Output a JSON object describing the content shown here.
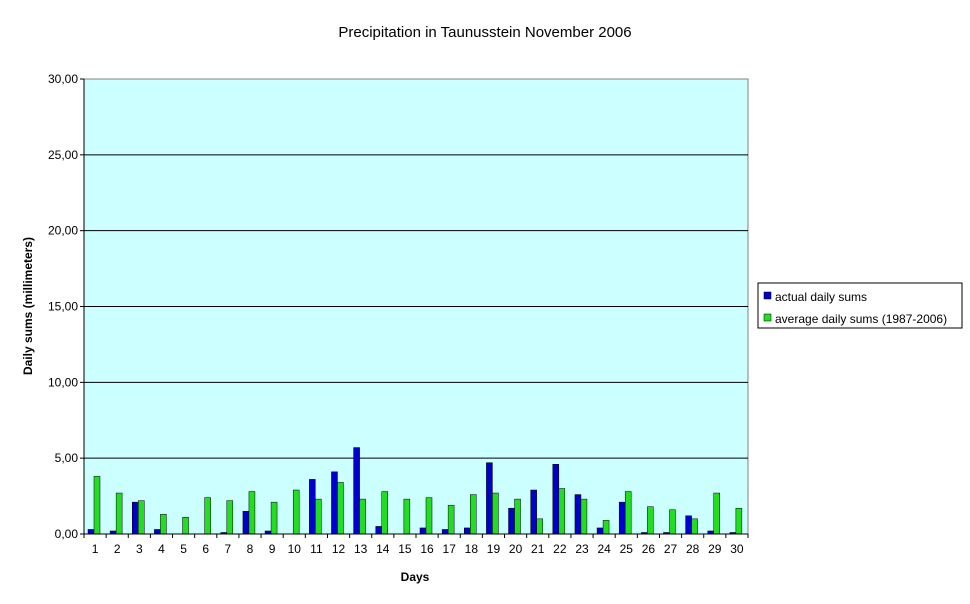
{
  "chart_data": {
    "type": "bar",
    "title": "Precipitation in Taunusstein  November  2006",
    "xlabel": "Days",
    "ylabel": "Daily sums  (millimeters)",
    "ylim": [
      0,
      30
    ],
    "yticks": [
      "0,00",
      "5,00",
      "10,00",
      "15,00",
      "20,00",
      "25,00",
      "30,00"
    ],
    "grid": true,
    "legend_position": "right",
    "categories": [
      "1",
      "2",
      "3",
      "4",
      "5",
      "6",
      "7",
      "8",
      "9",
      "10",
      "11",
      "12",
      "13",
      "14",
      "15",
      "16",
      "17",
      "18",
      "19",
      "20",
      "21",
      "22",
      "23",
      "24",
      "25",
      "26",
      "27",
      "28",
      "29",
      "30"
    ],
    "series": [
      {
        "name": "actual daily sums",
        "color": "#0000CC",
        "values": [
          0.3,
          0.2,
          2.1,
          0.3,
          0.0,
          0.0,
          0.1,
          1.5,
          0.2,
          0.0,
          3.6,
          4.1,
          5.7,
          0.5,
          0.0,
          0.4,
          0.3,
          0.4,
          4.7,
          1.7,
          2.9,
          4.6,
          2.6,
          0.4,
          2.1,
          0.1,
          0.1,
          1.2,
          0.2,
          0.1
        ]
      },
      {
        "name": "average daily sums (1987-2006)",
        "color": "#22DD22",
        "values": [
          3.8,
          2.7,
          2.2,
          1.3,
          1.1,
          2.4,
          2.2,
          2.8,
          2.1,
          2.9,
          2.3,
          3.4,
          2.3,
          2.8,
          2.3,
          2.4,
          1.9,
          2.6,
          2.7,
          2.3,
          1.0,
          3.0,
          2.3,
          0.9,
          2.8,
          1.8,
          1.6,
          1.0,
          2.7,
          1.7
        ]
      }
    ],
    "plot_background": "#CCFFFF"
  }
}
